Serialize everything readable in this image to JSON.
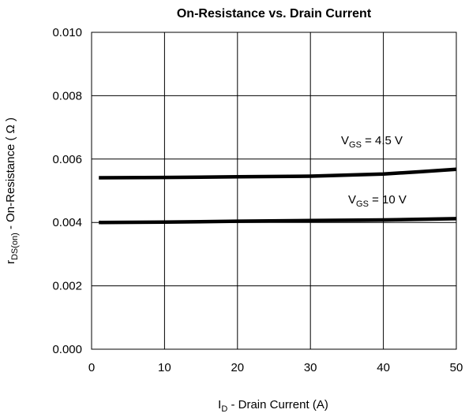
{
  "chart_data": {
    "type": "line",
    "title": "On-Resistance vs. Drain Current",
    "xlabel": {
      "main": "I",
      "sub": "D",
      "rest": "  -  Drain Current (A)"
    },
    "ylabel": {
      "main": "r",
      "sub": "DS(on)",
      "rest": "  -  On-Resistance ( Ω )"
    },
    "xlim": [
      0,
      50
    ],
    "ylim": [
      0,
      0.01
    ],
    "xticks": [
      "0",
      "10",
      "20",
      "30",
      "40",
      "50"
    ],
    "yticks": [
      "0.000",
      "0.002",
      "0.004",
      "0.006",
      "0.008",
      "0.010"
    ],
    "grid": true,
    "series": [
      {
        "name": {
          "main": "V",
          "sub": "GS",
          "rest": " = 4.5 V"
        },
        "x": [
          1,
          10,
          20,
          30,
          40,
          45,
          50
        ],
        "y": [
          0.00541,
          0.00542,
          0.00544,
          0.00546,
          0.00553,
          0.0056,
          0.00568
        ]
      },
      {
        "name": {
          "main": "V",
          "sub": "GS",
          "rest": " = 10 V"
        },
        "x": [
          1,
          10,
          20,
          30,
          40,
          50
        ],
        "y": [
          0.004,
          0.00401,
          0.00404,
          0.00406,
          0.00408,
          0.00412
        ]
      }
    ]
  }
}
